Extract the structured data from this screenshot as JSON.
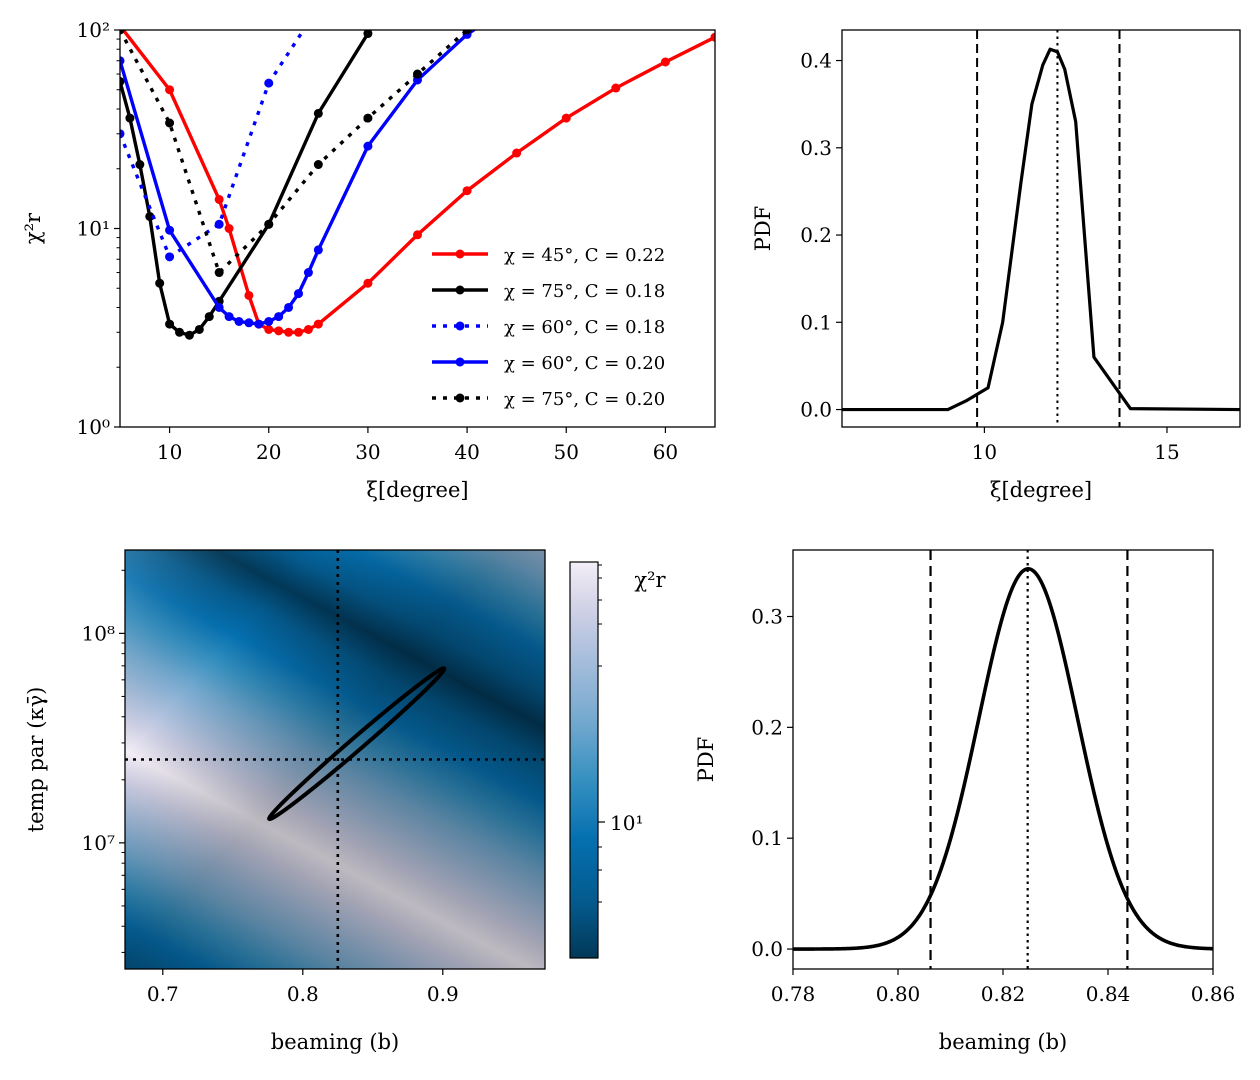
{
  "chart_data": [
    {
      "id": "chi2_vs_xi",
      "type": "line",
      "xlabel": "ξ[degree]",
      "ylabel": "χ²r",
      "xlim": [
        5,
        65
      ],
      "ylim": [
        1,
        100
      ],
      "yscale": "log",
      "xticks": [
        10,
        20,
        30,
        40,
        50,
        60
      ],
      "yticks": [
        {
          "v": 1,
          "label": "10⁰"
        },
        {
          "v": 10,
          "label": "10¹"
        },
        {
          "v": 100,
          "label": "10²"
        }
      ],
      "legend_position": "lower-right",
      "series": [
        {
          "name": "χ = 45°, C = 0.22",
          "color": "#ff0000",
          "dash": "solid",
          "x": [
            5,
            10,
            15,
            16,
            18,
            19,
            20,
            21,
            22,
            23,
            24,
            25,
            30,
            35,
            40,
            45,
            50,
            55,
            60,
            65
          ],
          "y": [
            105,
            50,
            14,
            10,
            4.6,
            3.3,
            3.1,
            3.05,
            3.0,
            3.0,
            3.1,
            3.3,
            5.3,
            9.3,
            15.5,
            24,
            36,
            51,
            69,
            92
          ]
        },
        {
          "name": "χ = 75°, C = 0.18",
          "color": "#000000",
          "dash": "solid",
          "x": [
            5,
            6,
            7,
            8,
            9,
            10,
            11,
            12,
            13,
            14,
            15,
            20,
            25,
            30,
            35
          ],
          "y": [
            55,
            36,
            21,
            11.5,
            5.3,
            3.3,
            3.0,
            2.9,
            3.1,
            3.6,
            4.3,
            10.5,
            38,
            96,
            250
          ]
        },
        {
          "name": "χ = 60°, C = 0.18",
          "color": "#0000ff",
          "dash": "dotted",
          "x": [
            5,
            10,
            15,
            20,
            25
          ],
          "y": [
            30,
            7.2,
            10.5,
            54,
            130
          ]
        },
        {
          "name": "χ = 60°, C = 0.20",
          "color": "#0000ff",
          "dash": "solid",
          "x": [
            5,
            10,
            15,
            16,
            17,
            18,
            19,
            20,
            21,
            22,
            23,
            24,
            25,
            30,
            35,
            40,
            45
          ],
          "y": [
            70,
            9.8,
            4.0,
            3.6,
            3.4,
            3.35,
            3.3,
            3.4,
            3.6,
            4.0,
            4.7,
            6.0,
            7.8,
            26,
            56,
            95,
            140
          ]
        },
        {
          "name": "χ = 75°, C = 0.20",
          "color": "#000000",
          "dash": "dotted",
          "x": [
            5,
            10,
            15,
            20,
            25,
            30,
            35,
            40,
            45
          ],
          "y": [
            100,
            34,
            6.0,
            10.5,
            21,
            36,
            60,
            100,
            130
          ]
        }
      ]
    },
    {
      "id": "pdf_xi",
      "type": "line",
      "xlabel": "ξ[degree]",
      "ylabel": "PDF",
      "xlim": [
        6.1,
        17
      ],
      "ylim": [
        -0.02,
        0.435
      ],
      "xticks": [
        10,
        15
      ],
      "yticks": [
        0.0,
        0.1,
        0.2,
        0.3,
        0.4
      ],
      "vlines": [
        {
          "x": 9.8,
          "dash": "dashed"
        },
        {
          "x": 12.0,
          "dash": "dotted"
        },
        {
          "x": 13.7,
          "dash": "dashed"
        }
      ],
      "series": [
        {
          "name": "",
          "color": "#000000",
          "dash": "solid",
          "x": [
            6.1,
            9.0,
            9.5,
            10.1,
            10.5,
            11.0,
            11.3,
            11.6,
            11.8,
            12.0,
            12.2,
            12.5,
            13.0,
            14.0,
            17.0
          ],
          "y": [
            0.0,
            0.0,
            0.01,
            0.025,
            0.1,
            0.26,
            0.35,
            0.395,
            0.413,
            0.41,
            0.39,
            0.33,
            0.06,
            0.001,
            0.0
          ]
        }
      ]
    },
    {
      "id": "chi2_map",
      "type": "heatmap",
      "xlabel": "beaming (b)",
      "ylabel": "temp par (κγ̄)",
      "xlim": [
        0.673,
        0.973
      ],
      "ylim": [
        2500000,
        250000000
      ],
      "yscale": "log",
      "xticks": [
        0.7,
        0.8,
        0.9
      ],
      "yticks": [
        {
          "v": 10000000,
          "label": "10⁷"
        },
        {
          "v": 100000000,
          "label": "10⁸"
        }
      ],
      "colormap": "PuBu_r",
      "colorbar_label": "χ²r",
      "colorbar_ticks": [
        {
          "v": 10,
          "label": "10¹"
        }
      ],
      "vline": 0.825,
      "hline": 25000000,
      "contour": {
        "center_x": 0.838,
        "center_y": 27000000,
        "ends": [
          [
            0.776,
            13000000
          ],
          [
            0.901,
            68000000
          ]
        ],
        "half_width_decades": 0.05
      }
    },
    {
      "id": "pdf_b",
      "type": "line",
      "xlabel": "beaming (b)",
      "ylabel": "PDF",
      "xlim": [
        0.78,
        0.86
      ],
      "ylim": [
        -0.018,
        0.36
      ],
      "xticks": [
        0.78,
        0.8,
        0.82,
        0.84,
        0.86
      ],
      "yticks": [
        0.0,
        0.1,
        0.2,
        0.3
      ],
      "vlines": [
        {
          "x": 0.8062,
          "dash": "dashed"
        },
        {
          "x": 0.8247,
          "dash": "dotted"
        },
        {
          "x": 0.8437,
          "dash": "dashed"
        }
      ],
      "gaussian": {
        "mean": 0.8248,
        "sigma": 0.0094,
        "peak": 0.343
      }
    }
  ]
}
